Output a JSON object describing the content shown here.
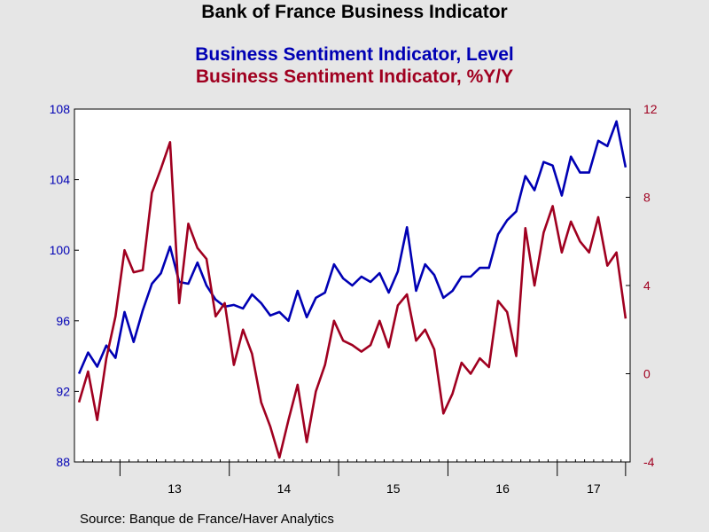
{
  "chart_data": {
    "type": "line",
    "title": "Bank of France Business Indicator",
    "source": "Source:  Banque de France/Haver Analytics",
    "x_labels": [
      "13",
      "14",
      "15",
      "16",
      "17"
    ],
    "left_axis": {
      "ylim": [
        88,
        108
      ],
      "ticks": [
        88,
        92,
        96,
        100,
        104,
        108
      ],
      "color": "#0000b4"
    },
    "right_axis": {
      "ylim": [
        -4,
        12
      ],
      "ticks": [
        -4,
        0,
        4,
        8,
        12
      ],
      "color": "#a00020"
    },
    "series": [
      {
        "name": "Business Sentiment Indicator, Level",
        "axis": "left",
        "color": "#0000b4",
        "start": "2012-08",
        "values": [
          93.0,
          94.2,
          93.4,
          94.6,
          93.9,
          96.5,
          94.8,
          96.6,
          98.1,
          98.7,
          100.2,
          98.2,
          98.1,
          99.3,
          98.0,
          97.2,
          96.8,
          96.9,
          96.7,
          97.5,
          97.0,
          96.3,
          96.5,
          96.0,
          97.7,
          96.2,
          97.3,
          97.6,
          99.2,
          98.4,
          98.0,
          98.5,
          98.2,
          98.7,
          97.6,
          98.8,
          101.3,
          97.7,
          99.2,
          98.6,
          97.3,
          97.7,
          98.5,
          98.5,
          99.0,
          99.0,
          100.9,
          101.7,
          102.2,
          104.2,
          103.4,
          105.0,
          104.8,
          103.1,
          105.3,
          104.4,
          104.4,
          106.2,
          105.9,
          107.3,
          104.7
        ]
      },
      {
        "name": "Business Sentiment Indicator, %Y/Y",
        "axis": "right",
        "color": "#a00020",
        "start": "2012-08",
        "values": [
          -1.3,
          0.1,
          -2.1,
          0.7,
          2.6,
          5.6,
          4.6,
          4.7,
          8.2,
          9.3,
          10.5,
          3.2,
          6.8,
          5.7,
          5.2,
          2.6,
          3.2,
          0.4,
          2.0,
          0.9,
          -1.3,
          -2.4,
          -3.8,
          -2.1,
          -0.5,
          -3.1,
          -0.8,
          0.4,
          2.4,
          1.5,
          1.3,
          1.0,
          1.3,
          2.4,
          1.2,
          3.1,
          3.6,
          1.5,
          2.0,
          1.1,
          -1.8,
          -0.9,
          0.5,
          0.0,
          0.7,
          0.3,
          3.3,
          2.8,
          0.8,
          6.6,
          4.0,
          6.4,
          7.6,
          5.5,
          6.9,
          6.0,
          5.5,
          7.1,
          4.9,
          5.5,
          2.5
        ]
      }
    ]
  }
}
